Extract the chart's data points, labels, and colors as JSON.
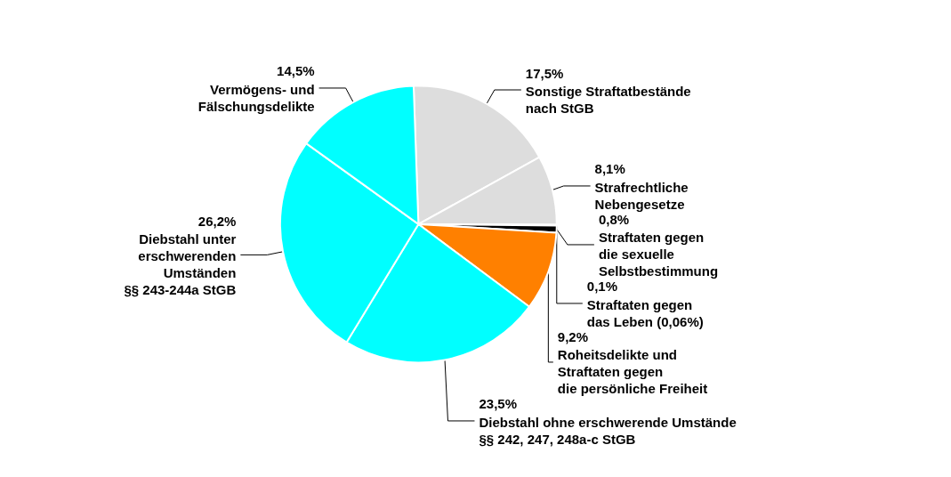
{
  "chart_data": {
    "type": "pie",
    "categories": [
      "Sonstige Straftatbestände\nnach StGB",
      "Strafrechtliche\nNebengesetze",
      "Straftaten gegen\ndas Leben (0,06%)",
      "Straftaten gegen\ndie sexuelle\nSelbstbestimmung",
      "Roheitsdelikte und\nStraftaten gegen\ndie persönliche Freiheit",
      "Diebstahl ohne erschwerende Umstände\n§§ 242, 247, 248a-c StGB",
      "Diebstahl unter\nerschwerenden\nUmständen\n§§ 243-244a StGB",
      "Vermögens- und\nFälschungsdelikte"
    ],
    "values": [
      17.5,
      8.1,
      0.1,
      0.8,
      9.2,
      23.5,
      26.2,
      14.5
    ],
    "value_labels": [
      "17,5%",
      "8,1%",
      "0,1%",
      "0,8%",
      "9,2%",
      "23,5%",
      "26,2%",
      "14,5%"
    ],
    "colors": [
      "#dddddd",
      "#dddddd",
      "#000000",
      "#000000",
      "#ff8000",
      "#00ffff",
      "#00ffff",
      "#00ffff"
    ],
    "legend": false
  }
}
